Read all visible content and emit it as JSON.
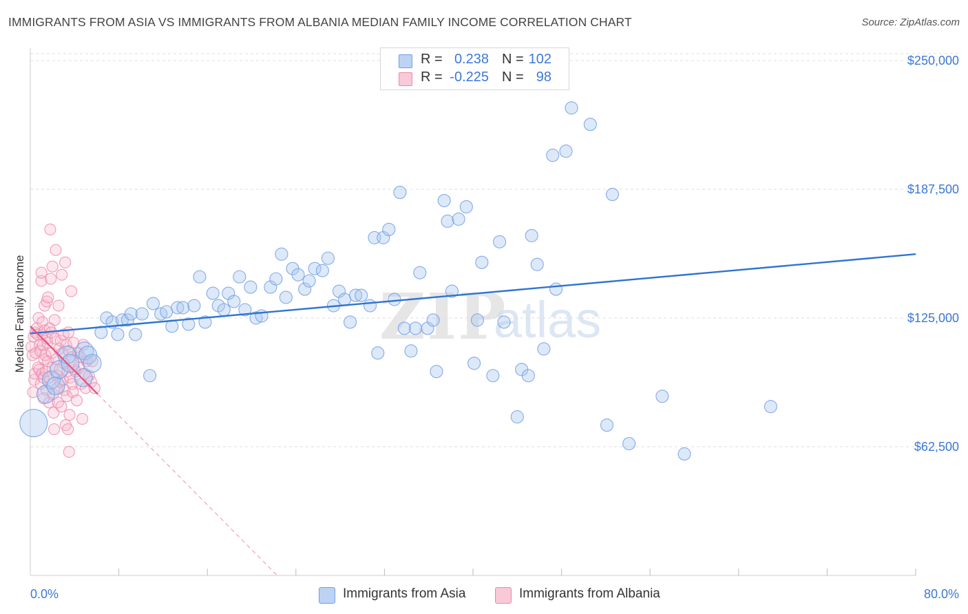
{
  "title": "IMMIGRANTS FROM ASIA VS IMMIGRANTS FROM ALBANIA MEDIAN FAMILY INCOME CORRELATION CHART",
  "source": "Source: ZipAtlas.com",
  "watermark": {
    "zip": "ZIP",
    "atlas": "atlas"
  },
  "colors": {
    "asia_fill": "#a9c8f0",
    "asia_stroke": "#6f9ee3",
    "asia_line": "#2f74d0",
    "albania_fill": "#f7b9cd",
    "albania_stroke": "#ec86a8",
    "albania_line": "#e8517f",
    "axis_label": "#3c78d8",
    "grid": "#dcdcdc"
  },
  "legend_top": {
    "rows": [
      {
        "r_label": "R =",
        "r_value": "0.238",
        "n_label": "N =",
        "n_value": "102"
      },
      {
        "r_label": "R =",
        "r_value": "-0.225",
        "n_label": "N =",
        "n_value": "98"
      }
    ]
  },
  "legend_bottom": [
    "Immigrants from Asia",
    "Immigrants from Albania"
  ],
  "chart_data": {
    "type": "scatter",
    "title": "IMMIGRANTS FROM ASIA VS IMMIGRANTS FROM ALBANIA MEDIAN FAMILY INCOME CORRELATION CHART",
    "xlabel": "",
    "ylabel": "Median Family Income",
    "xlim": [
      0,
      80
    ],
    "ylim": [
      0,
      256000
    ],
    "x_tick_labels": [
      "0.0%",
      "80.0%"
    ],
    "y_tick_labels": [
      "$62,500",
      "$125,000",
      "$187,500",
      "$250,000"
    ],
    "y_ticks": [
      62500,
      125000,
      187500,
      250000
    ],
    "grid": true,
    "legend_position": "top-center",
    "series": [
      {
        "name": "Immigrants from Asia",
        "r": 0.238,
        "n": 102,
        "trend": {
          "x": [
            0,
            80
          ],
          "y": [
            117500,
            156000
          ]
        },
        "points": [
          [
            0.3,
            74000,
            3
          ],
          [
            1.4,
            88000,
            2
          ],
          [
            1.9,
            95000,
            2
          ],
          [
            2.3,
            92000,
            2
          ],
          [
            2.6,
            100000,
            2
          ],
          [
            3.3,
            107000,
            2
          ],
          [
            3.6,
            103000,
            2
          ],
          [
            4.8,
            96000,
            2
          ],
          [
            4.9,
            109000,
            2
          ],
          [
            5.2,
            107000,
            2
          ],
          [
            5.6,
            103000,
            2
          ],
          [
            6.4,
            118000,
            1
          ],
          [
            6.9,
            125000,
            1
          ],
          [
            7.4,
            123000,
            1
          ],
          [
            7.9,
            117000,
            1
          ],
          [
            8.3,
            124000,
            1
          ],
          [
            8.8,
            124000,
            1
          ],
          [
            9.1,
            127000,
            1
          ],
          [
            9.5,
            117000,
            1
          ],
          [
            10.1,
            127000,
            1
          ],
          [
            10.8,
            97000,
            1
          ],
          [
            11.1,
            132000,
            1
          ],
          [
            11.8,
            127000,
            1
          ],
          [
            12.3,
            128000,
            1
          ],
          [
            12.8,
            121000,
            1
          ],
          [
            13.3,
            130000,
            1
          ],
          [
            13.8,
            130000,
            1
          ],
          [
            14.3,
            122000,
            1
          ],
          [
            14.8,
            131000,
            1
          ],
          [
            15.3,
            145000,
            1
          ],
          [
            15.8,
            123000,
            1
          ],
          [
            16.5,
            137000,
            1
          ],
          [
            17.0,
            131000,
            1
          ],
          [
            17.5,
            129000,
            1
          ],
          [
            17.9,
            137000,
            1
          ],
          [
            18.4,
            133000,
            1
          ],
          [
            18.9,
            145000,
            1
          ],
          [
            19.4,
            129000,
            1
          ],
          [
            19.9,
            140000,
            1
          ],
          [
            20.4,
            125000,
            1
          ],
          [
            20.9,
            126000,
            1
          ],
          [
            21.7,
            140000,
            1
          ],
          [
            22.2,
            144000,
            1
          ],
          [
            22.7,
            156000,
            1
          ],
          [
            23.1,
            135000,
            1
          ],
          [
            23.7,
            149000,
            1
          ],
          [
            24.2,
            146000,
            1
          ],
          [
            24.8,
            139000,
            1
          ],
          [
            25.2,
            143000,
            1
          ],
          [
            25.7,
            149000,
            1
          ],
          [
            26.4,
            148000,
            1
          ],
          [
            26.9,
            154000,
            1
          ],
          [
            27.4,
            131000,
            1
          ],
          [
            27.9,
            138000,
            1
          ],
          [
            28.4,
            134000,
            1
          ],
          [
            28.9,
            123000,
            1
          ],
          [
            29.4,
            136000,
            1
          ],
          [
            29.9,
            136000,
            1
          ],
          [
            30.7,
            131000,
            1
          ],
          [
            31.1,
            164000,
            1
          ],
          [
            31.4,
            108000,
            1
          ],
          [
            31.9,
            164000,
            1
          ],
          [
            32.4,
            168000,
            1
          ],
          [
            32.9,
            134000,
            1
          ],
          [
            33.4,
            186000,
            1
          ],
          [
            33.8,
            120000,
            1
          ],
          [
            34.4,
            109000,
            1
          ],
          [
            34.8,
            120000,
            1
          ],
          [
            35.2,
            147000,
            1
          ],
          [
            35.9,
            120000,
            1
          ],
          [
            36.4,
            124000,
            1
          ],
          [
            36.7,
            99000,
            1
          ],
          [
            37.4,
            182000,
            1
          ],
          [
            37.7,
            172000,
            1
          ],
          [
            38.1,
            138000,
            1
          ],
          [
            38.7,
            173000,
            1
          ],
          [
            39.4,
            179000,
            1
          ],
          [
            40.1,
            103000,
            1
          ],
          [
            40.4,
            124000,
            1
          ],
          [
            40.8,
            152000,
            1
          ],
          [
            41.8,
            97000,
            1
          ],
          [
            42.4,
            162000,
            1
          ],
          [
            42.8,
            123000,
            1
          ],
          [
            44.0,
            77000,
            1
          ],
          [
            44.4,
            100000,
            1
          ],
          [
            45.0,
            97000,
            1
          ],
          [
            45.3,
            165000,
            1
          ],
          [
            45.8,
            151000,
            1
          ],
          [
            46.4,
            110000,
            1
          ],
          [
            47.2,
            204000,
            1
          ],
          [
            47.5,
            139000,
            1
          ],
          [
            48.4,
            206000,
            1
          ],
          [
            48.9,
            227000,
            1
          ],
          [
            50.6,
            219000,
            1
          ],
          [
            52.1,
            73000,
            1
          ],
          [
            52.6,
            185000,
            1
          ],
          [
            54.1,
            64000,
            1
          ],
          [
            57.1,
            87000,
            1
          ],
          [
            59.1,
            59000,
            1
          ],
          [
            66.9,
            82000,
            1
          ]
        ]
      },
      {
        "name": "Immigrants from Albania",
        "r": -0.225,
        "n": 98,
        "trend": {
          "x": [
            0,
            6.1
          ],
          "y": [
            121000,
            88000
          ]
        },
        "trend_extension": {
          "x": [
            6.1,
            26
          ],
          "y": [
            88000,
            -20000
          ]
        },
        "points": [
          [
            0.1,
            111000
          ],
          [
            0.2,
            107000
          ],
          [
            0.25,
            89000
          ],
          [
            0.3,
            116000
          ],
          [
            0.35,
            95000
          ],
          [
            0.4,
            98000
          ],
          [
            0.45,
            118000
          ],
          [
            0.5,
            108000
          ],
          [
            0.6,
            120000
          ],
          [
            0.65,
            117000
          ],
          [
            0.7,
            101000
          ],
          [
            0.75,
            125000
          ],
          [
            0.8,
            100000
          ],
          [
            0.85,
            112000
          ],
          [
            0.9,
            109000
          ],
          [
            0.95,
            93000
          ],
          [
            1.0,
            143000
          ],
          [
            1.0,
            147000
          ],
          [
            1.05,
            98000
          ],
          [
            1.1,
            123000
          ],
          [
            1.1,
            117000
          ],
          [
            1.15,
            112000
          ],
          [
            1.2,
            96000
          ],
          [
            1.25,
            105000
          ],
          [
            1.3,
            131000
          ],
          [
            1.3,
            119000
          ],
          [
            1.35,
            107000
          ],
          [
            1.4,
            99000
          ],
          [
            1.45,
            90000
          ],
          [
            1.5,
            133000
          ],
          [
            1.5,
            115000
          ],
          [
            1.55,
            113000
          ],
          [
            1.6,
            104000
          ],
          [
            1.65,
            96000
          ],
          [
            1.7,
            84000
          ],
          [
            1.75,
            120000
          ],
          [
            1.8,
            168000
          ],
          [
            1.85,
            144000
          ],
          [
            1.9,
            118000
          ],
          [
            1.95,
            108000
          ],
          [
            2.0,
            101000
          ],
          [
            2.05,
            88000
          ],
          [
            2.1,
            79000
          ],
          [
            2.15,
            71000
          ],
          [
            2.2,
            124000
          ],
          [
            2.25,
            115000
          ],
          [
            2.3,
            158000
          ],
          [
            2.35,
            105000
          ],
          [
            2.4,
            97000
          ],
          [
            2.45,
            91000
          ],
          [
            2.5,
            84000
          ],
          [
            2.55,
            131000
          ],
          [
            2.6,
            110000
          ],
          [
            2.65,
            100000
          ],
          [
            2.7,
            94000
          ],
          [
            2.75,
            114000
          ],
          [
            2.8,
            82000
          ],
          [
            2.85,
            146000
          ],
          [
            2.9,
            108000
          ],
          [
            2.95,
            95000
          ],
          [
            3.0,
            117000
          ],
          [
            3.05,
            103000
          ],
          [
            3.1,
            90000
          ],
          [
            3.15,
            152000
          ],
          [
            3.2,
            73000
          ],
          [
            3.25,
            112000
          ],
          [
            3.3,
            87000
          ],
          [
            3.35,
            99000
          ],
          [
            3.4,
            71000
          ],
          [
            3.45,
            118000
          ],
          [
            3.5,
            109000
          ],
          [
            3.55,
            78000
          ],
          [
            3.6,
            96000
          ],
          [
            3.7,
            138000
          ],
          [
            3.75,
            106000
          ],
          [
            3.8,
            93000
          ],
          [
            3.85,
            89000
          ],
          [
            3.9,
            113000
          ],
          [
            4.0,
            100000
          ],
          [
            4.1,
            99000
          ],
          [
            4.2,
            85000
          ],
          [
            4.3,
            108000
          ],
          [
            4.4,
            101000
          ],
          [
            4.5,
            106000
          ],
          [
            4.6,
            93000
          ],
          [
            4.7,
            76000
          ],
          [
            4.8,
            112000
          ],
          [
            4.9,
            98000
          ],
          [
            5.0,
            91000
          ],
          [
            5.1,
            104000
          ],
          [
            5.3,
            97000
          ],
          [
            5.5,
            94000
          ],
          [
            5.6,
            104000
          ],
          [
            5.8,
            91000
          ],
          [
            3.5,
            60000
          ],
          [
            1.6,
            135000
          ],
          [
            2.0,
            150000
          ],
          [
            1.2,
            86000
          ]
        ]
      }
    ]
  }
}
